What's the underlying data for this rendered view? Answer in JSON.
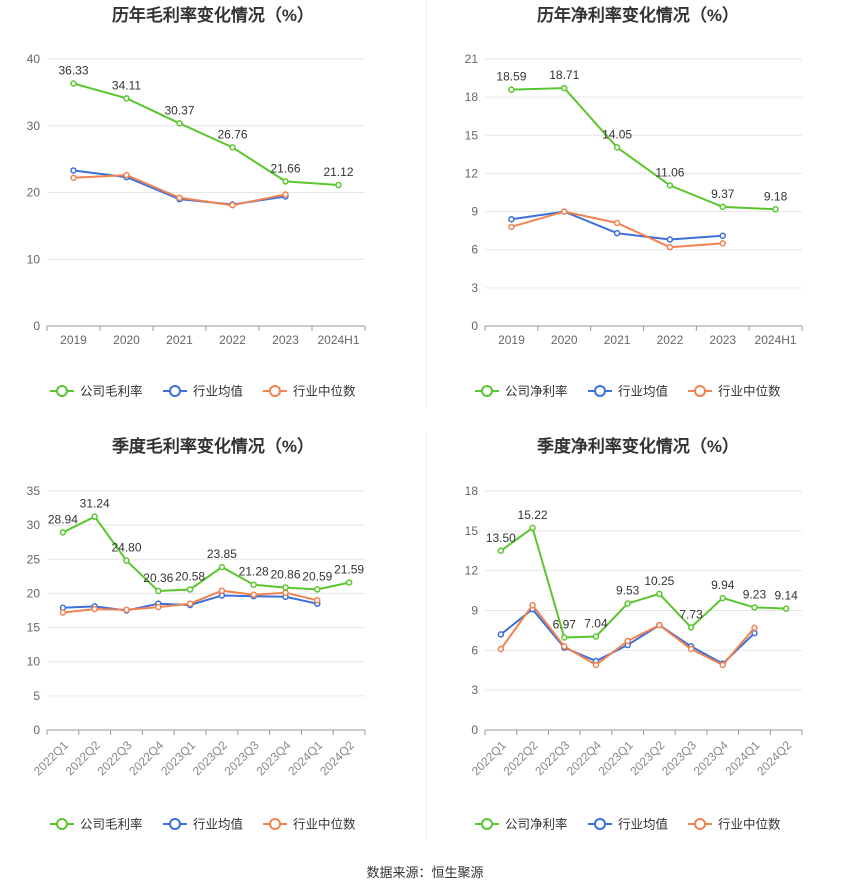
{
  "footer": {
    "source": "数据来源：恒生聚源"
  },
  "colors": {
    "company": "#5ac62f",
    "industry_avg": "#3d6fdb",
    "industry_median": "#f08350"
  },
  "chart_data": [
    {
      "type": "line",
      "title": "历年毛利率变化情况（%）",
      "categories": [
        "2019",
        "2020",
        "2021",
        "2022",
        "2023",
        "2024H1"
      ],
      "ylim": [
        0,
        40
      ],
      "yticks": [
        0,
        10,
        20,
        30,
        40
      ],
      "grid": true,
      "legend": "bottom",
      "series": [
        {
          "name": "公司毛利率",
          "values": [
            36.33,
            34.11,
            30.37,
            26.76,
            21.66,
            21.12
          ],
          "labels": [
            "36.33",
            "34.11",
            "30.37",
            "26.76",
            "21.66",
            "21.12"
          ]
        },
        {
          "name": "行业均值",
          "values": [
            23.3,
            22.3,
            19.0,
            18.2,
            19.4,
            null
          ]
        },
        {
          "name": "行业中位数",
          "values": [
            22.2,
            22.6,
            19.2,
            18.1,
            19.7,
            null
          ]
        }
      ]
    },
    {
      "type": "line",
      "title": "历年净利率变化情况（%）",
      "categories": [
        "2019",
        "2020",
        "2021",
        "2022",
        "2023",
        "2024H1"
      ],
      "ylim": [
        0,
        21
      ],
      "yticks": [
        0,
        3,
        6,
        9,
        12,
        15,
        18,
        21
      ],
      "grid": true,
      "legend": "bottom",
      "series": [
        {
          "name": "公司净利率",
          "values": [
            18.59,
            18.71,
            14.05,
            11.06,
            9.37,
            9.18
          ],
          "labels": [
            "18.59",
            "18.71",
            "14.05",
            "11.06",
            "9.37",
            "9.18"
          ]
        },
        {
          "name": "行业均值",
          "values": [
            8.4,
            9.0,
            7.3,
            6.8,
            7.1,
            null
          ]
        },
        {
          "name": "行业中位数",
          "values": [
            7.8,
            9.0,
            8.1,
            6.2,
            6.5,
            null
          ]
        }
      ]
    },
    {
      "type": "line",
      "title": "季度毛利率变化情况（%）",
      "categories": [
        "2022Q1",
        "2022Q2",
        "2022Q3",
        "2022Q4",
        "2023Q1",
        "2023Q2",
        "2023Q3",
        "2023Q4",
        "2024Q1",
        "2024Q2"
      ],
      "ylim": [
        0,
        35
      ],
      "yticks": [
        0,
        5,
        10,
        15,
        20,
        25,
        30,
        35
      ],
      "grid": true,
      "legend": "bottom",
      "series": [
        {
          "name": "公司毛利率",
          "values": [
            28.94,
            31.24,
            24.8,
            20.36,
            20.58,
            23.85,
            21.28,
            20.86,
            20.59,
            21.59
          ],
          "labels": [
            "28.94",
            "31.24",
            "24.80",
            "20.36",
            "20.58",
            "23.85",
            "21.28",
            "20.86",
            "20.59",
            "21.59"
          ]
        },
        {
          "name": "行业均值",
          "values": [
            17.9,
            18.1,
            17.5,
            18.5,
            18.3,
            19.7,
            19.6,
            19.5,
            18.5,
            null
          ]
        },
        {
          "name": "行业中位数",
          "values": [
            17.2,
            17.7,
            17.6,
            18.0,
            18.5,
            20.4,
            19.8,
            20.1,
            19.0,
            null
          ]
        }
      ]
    },
    {
      "type": "line",
      "title": "季度净利率变化情况（%）",
      "categories": [
        "2022Q1",
        "2022Q2",
        "2022Q3",
        "2022Q4",
        "2023Q1",
        "2023Q2",
        "2023Q3",
        "2023Q4",
        "2024Q1",
        "2024Q2"
      ],
      "ylim": [
        0,
        18
      ],
      "yticks": [
        0,
        3,
        6,
        9,
        12,
        15,
        18
      ],
      "grid": true,
      "legend": "bottom",
      "series": [
        {
          "name": "公司净利率",
          "values": [
            13.5,
            15.22,
            6.97,
            7.04,
            9.53,
            10.25,
            7.73,
            9.94,
            9.23,
            9.14
          ],
          "labels": [
            "13.50",
            "15.22",
            "6.97",
            "7.04",
            "9.53",
            "10.25",
            "7.73",
            "9.94",
            "9.23",
            "9.14"
          ]
        },
        {
          "name": "行业均值",
          "values": [
            7.2,
            9.1,
            6.2,
            5.2,
            6.4,
            7.9,
            6.3,
            5.0,
            7.3,
            null
          ]
        },
        {
          "name": "行业中位数",
          "values": [
            6.1,
            9.4,
            6.3,
            4.9,
            6.7,
            7.9,
            6.1,
            4.9,
            7.7,
            null
          ]
        }
      ]
    }
  ]
}
